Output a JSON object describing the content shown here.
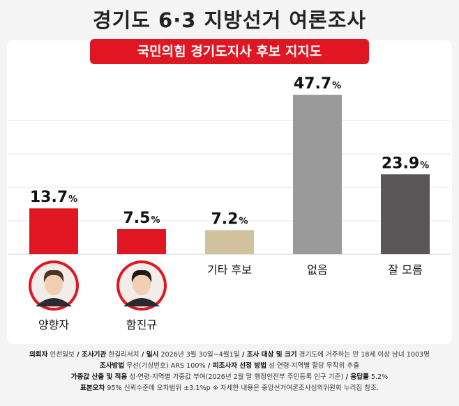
{
  "title": "경기도 6·3 지방선거 여론조사",
  "subtitle": "국민의힘 경기도지사 후보 지지도",
  "chart_data": {
    "type": "bar",
    "categories": [
      "양향자",
      "함진규",
      "기타 후보",
      "없음",
      "잘 모름"
    ],
    "values": [
      13.7,
      7.5,
      7.2,
      47.7,
      23.9
    ],
    "value_labels": [
      "13.7",
      "7.5",
      "7.2",
      "47.7",
      "23.9"
    ],
    "unit": "%",
    "ylim": [
      0,
      50
    ],
    "grid": true,
    "colors": [
      "#e01622",
      "#e01622",
      "#cfc29c",
      "#9a9a9a",
      "#5a5556"
    ]
  },
  "candidates": [
    {
      "name": "양향자",
      "photo": "portrait-photo"
    },
    {
      "name": "함진규",
      "photo": "portrait-photo"
    }
  ],
  "notes": {
    "line1": [
      {
        "label": "의뢰자",
        "text": "인천일보"
      },
      {
        "label": "조사기관",
        "text": "한길리서치"
      },
      {
        "label": "일시",
        "text": "2026년 3월 30일~4월1일"
      },
      {
        "label": "조사 대상 및 크기",
        "text": "경기도에 거주하는 만 18세 이상 남녀 1003명"
      }
    ],
    "line2": [
      {
        "label": "조사방법",
        "text": "무선(가상번호) ARS 100%"
      },
      {
        "label": "피조사자 선정 방법",
        "text": "성·연령·지역별 할당 무작위 추출"
      }
    ],
    "line3": [
      {
        "label": "가중값 산출 및 적용",
        "text": "성·연령·지역별 가중값 부여(2026년 2월 말 행정안전부 주민등록 인구 기준)"
      },
      {
        "label": "응답률",
        "text": "5.2%"
      }
    ],
    "line4": [
      {
        "label": "표본오차",
        "text": "95% 신뢰수준에 오차범위 ±3.1%p  ※ 자세한 내용은 중앙선거여론조사심의위원회 누리집 참조."
      }
    ]
  }
}
